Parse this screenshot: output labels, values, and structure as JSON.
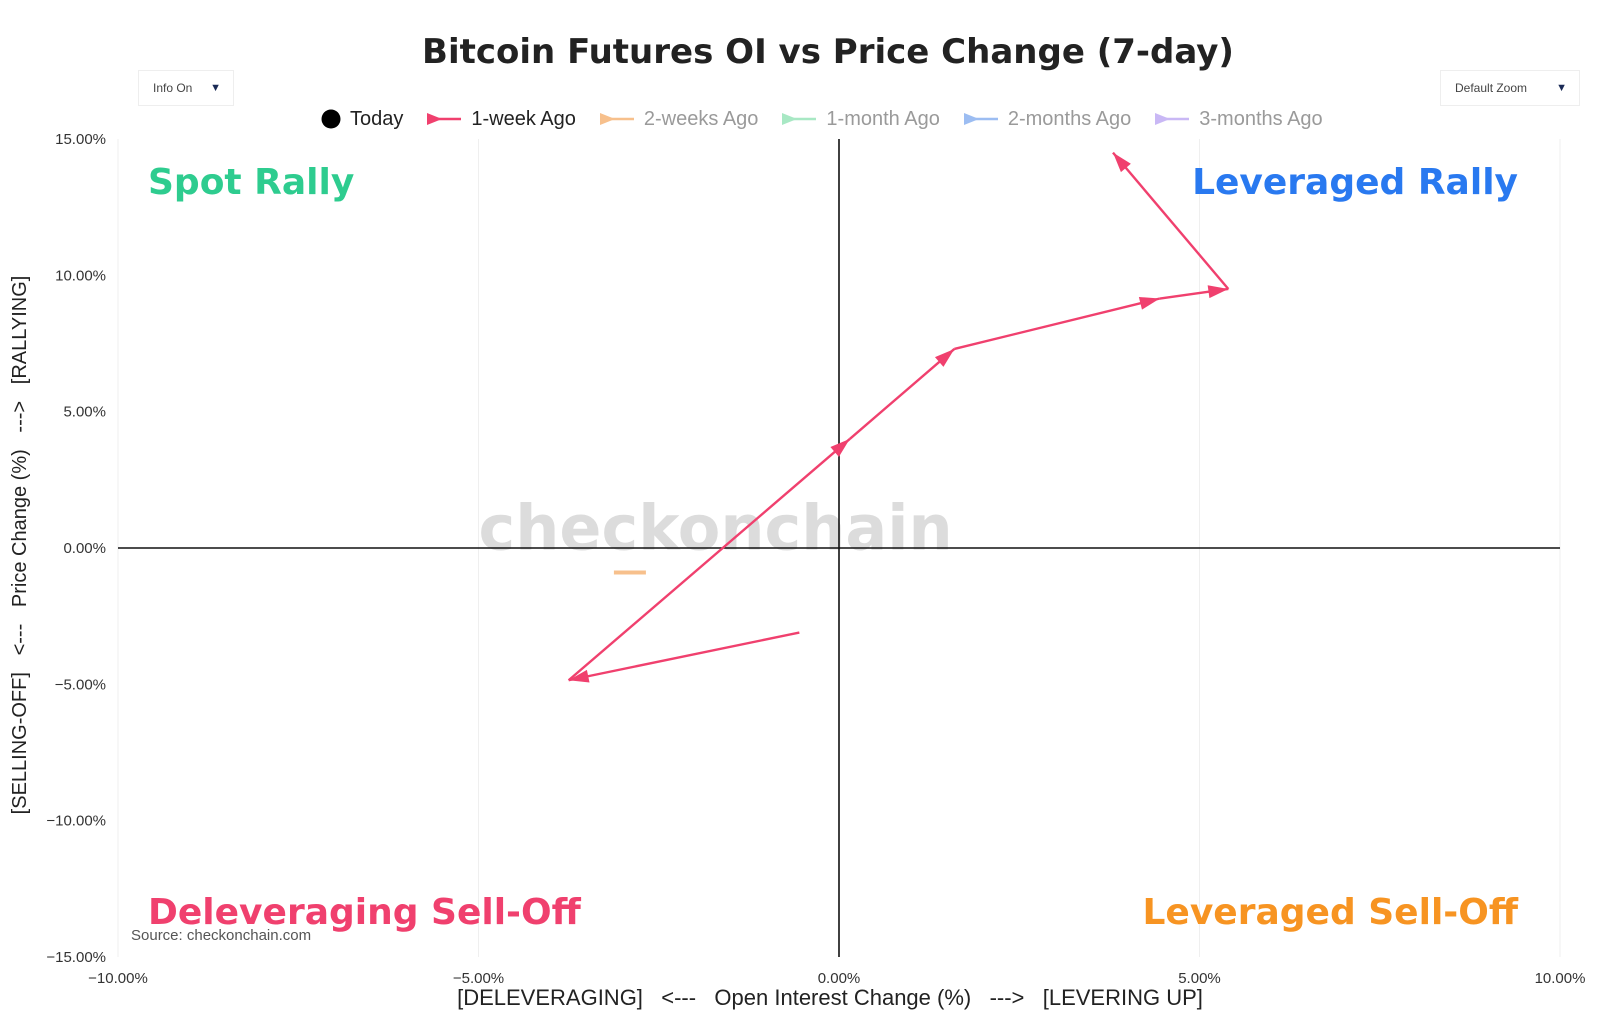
{
  "chart_data": {
    "type": "line",
    "title": "Bitcoin Futures OI vs Price Change (7-day)",
    "xlabel": "[DELEVERAGING]   <---   Open Interest Change (%)   --->   [LEVERING UP]",
    "ylabel": "[SELLING-OFF]   <---   Price Change (%)   --->   [RALLYING]",
    "xlim": [
      -10,
      10
    ],
    "ylim": [
      -15,
      15
    ],
    "x_ticks": [
      -10,
      -5,
      0,
      5,
      10
    ],
    "x_tick_labels": [
      "−10.00%",
      "−5.00%",
      "0.00%",
      "5.00%",
      "10.00%"
    ],
    "y_ticks": [
      15,
      10,
      5,
      0,
      -5,
      -10,
      -15
    ],
    "y_tick_labels": [
      "15.00%",
      "10.00%",
      "5.00%",
      "0.00%",
      "−5.00%",
      "−10.00%",
      "−15.00%"
    ],
    "grid": true,
    "legend_position": "top-center",
    "legend": [
      {
        "name": "Today",
        "color": "#000000",
        "marker": "circle",
        "active": true
      },
      {
        "name": "1-week Ago",
        "color": "#f0406e",
        "marker": "arrow",
        "active": true
      },
      {
        "name": "2-weeks Ago",
        "color": "#f7c08c",
        "marker": "arrow",
        "active": false
      },
      {
        "name": "1-month Ago",
        "color": "#a8e8c4",
        "marker": "arrow",
        "active": false
      },
      {
        "name": "2-months Ago",
        "color": "#9cbdf2",
        "marker": "arrow",
        "active": false
      },
      {
        "name": "3-months Ago",
        "color": "#c9b8f5",
        "marker": "arrow",
        "active": false
      }
    ],
    "series": [
      {
        "name": "1-week Ago",
        "color": "#f0406e",
        "points": [
          {
            "x": -0.55,
            "y": -3.1
          },
          {
            "x": -3.75,
            "y": -4.85
          },
          {
            "x": 0.15,
            "y": 4.0
          },
          {
            "x": 1.6,
            "y": 7.3
          },
          {
            "x": 4.45,
            "y": 9.15
          },
          {
            "x": 5.4,
            "y": 9.5
          },
          {
            "x": 3.8,
            "y": 14.5
          }
        ]
      },
      {
        "name": "2-weeks Ago",
        "color": "#f7c08c",
        "points": [
          {
            "x": -2.9,
            "y": -0.9
          }
        ]
      }
    ],
    "quadrant_labels": [
      {
        "text": "Spot Rally",
        "color": "#2ecc8f",
        "position": "top-left"
      },
      {
        "text": "Leveraged Rally",
        "color": "#2979f0",
        "position": "top-right"
      },
      {
        "text": "Deleveraging Sell-Off",
        "color": "#f0406e",
        "position": "bottom-left"
      },
      {
        "text": "Leveraged Sell-Off",
        "color": "#f79422",
        "position": "bottom-right"
      }
    ],
    "watermark": "checkonchain",
    "source": "Source: checkonchain.com"
  },
  "controls": {
    "info": "Info On",
    "zoom": "Default Zoom"
  }
}
